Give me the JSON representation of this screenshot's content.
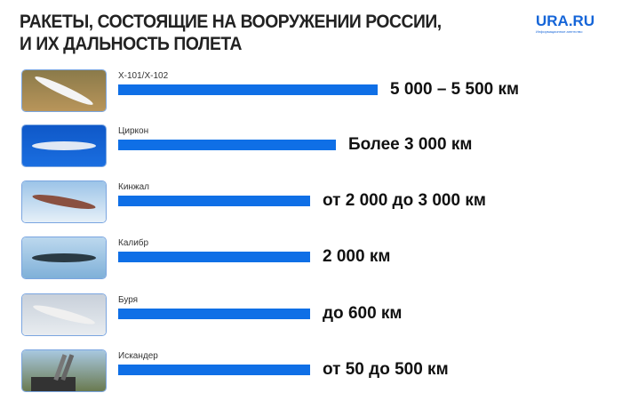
{
  "title_line1": "РАКЕТЫ, СОСТОЯЩИЕ НА ВООРУЖЕНИИ РОССИИ,",
  "title_line2": "И ИХ ДАЛЬНОСТЬ ПОЛЕТА",
  "logo": {
    "text": "URA.RU",
    "tagline": "Информационное агентство"
  },
  "colors": {
    "bar": "#0f6fe6",
    "text": "#111111"
  },
  "chart_data": {
    "type": "bar",
    "orientation": "horizontal",
    "categories": [
      "Х-101/Х-102",
      "Циркон",
      "Кинжал",
      "Калибр",
      "Буря",
      "Искандер"
    ],
    "labels": [
      "5 000 – 5 500 км",
      "Более 3 000 км",
      "от 2 000 до 3 000 км",
      "2 000 км",
      "до 600 км",
      "от 50 до 500 км"
    ],
    "range_km": [
      [
        5000,
        5500
      ],
      [
        3000,
        null
      ],
      [
        2000,
        3000
      ],
      [
        2000,
        2000
      ],
      [
        null,
        600
      ],
      [
        50,
        500
      ]
    ],
    "bar_fill": [
      1.0,
      0.84,
      0.74,
      0.74,
      0.74,
      0.74
    ],
    "thumbnails": [
      "x101-image",
      "zircon-image",
      "kinzhal-image",
      "kalibr-image",
      "burya-image",
      "iskander-image"
    ]
  }
}
